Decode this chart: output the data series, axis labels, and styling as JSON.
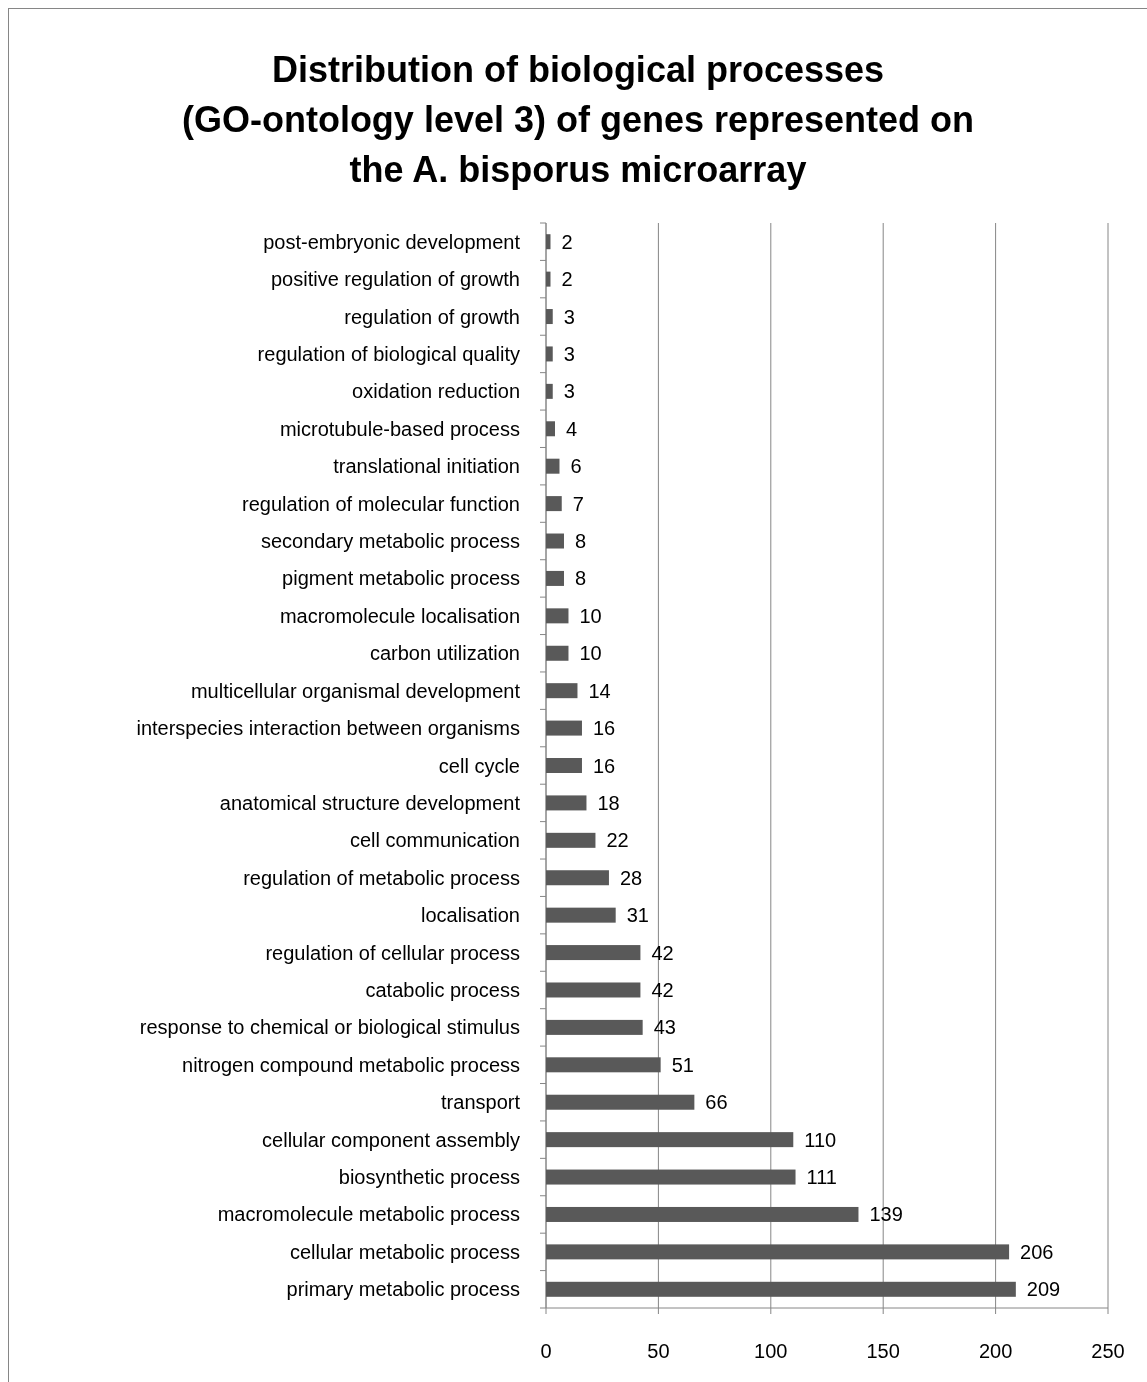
{
  "chart_data": {
    "type": "bar",
    "orientation": "horizontal",
    "title": "Distribution of biological processes (GO-ontology level 3) of genes represented on the A. bisporus microarray",
    "categories": [
      "post-embryonic development",
      "positive regulation of growth",
      "regulation of growth",
      "regulation of biological quality",
      "oxidation reduction",
      "microtubule-based process",
      "translational initiation",
      "regulation of molecular function",
      "secondary metabolic process",
      "pigment metabolic process",
      "macromolecule localisation",
      "carbon utilization",
      "multicellular organismal development",
      "interspecies interaction between organisms",
      "cell cycle",
      "anatomical structure development",
      "cell communication",
      "regulation of metabolic process",
      "localisation",
      "regulation of cellular process",
      "catabolic process",
      "response to chemical or biological stimulus",
      "nitrogen compound metabolic process",
      "transport",
      "cellular component assembly",
      "biosynthetic process",
      "macromolecule metabolic process",
      "cellular metabolic process",
      "primary metabolic process"
    ],
    "values": [
      2,
      2,
      3,
      3,
      3,
      4,
      6,
      7,
      8,
      8,
      10,
      10,
      14,
      16,
      16,
      18,
      22,
      28,
      31,
      42,
      42,
      43,
      51,
      66,
      110,
      111,
      139,
      206,
      209
    ],
    "color": "#595959",
    "xlim": [
      0,
      250
    ],
    "xticks": [
      0,
      50,
      100,
      150,
      200,
      250
    ],
    "grid": "x",
    "data_labels": true
  }
}
